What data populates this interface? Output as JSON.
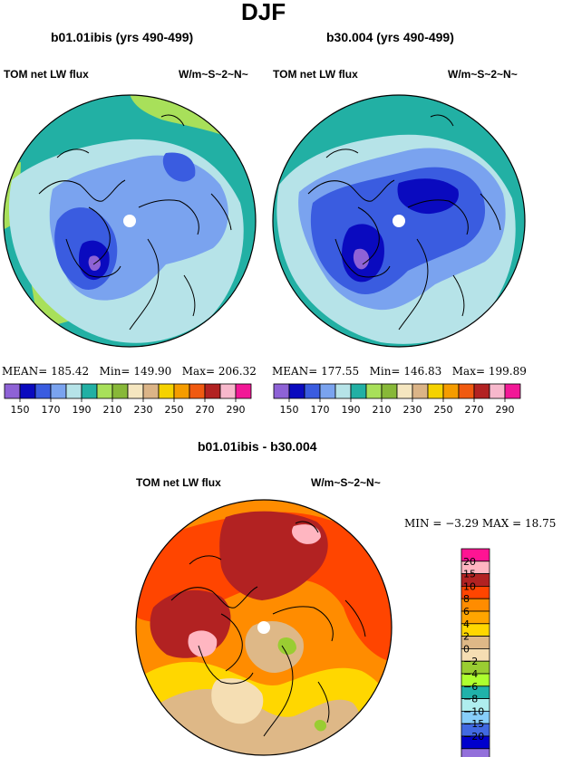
{
  "figure": {
    "title": "DJF"
  },
  "panels": [
    {
      "id": "left",
      "case_title": "b01.01ibis (yrs 490-499)",
      "variable": "TOM net LW flux",
      "units": "W/m~S~2~N~",
      "stats": {
        "mean_label": "MEAN=",
        "mean": "185.42",
        "min_label": "Min=",
        "min": "149.90",
        "max_label": "Max=",
        "max": "206.32"
      }
    },
    {
      "id": "right",
      "case_title": "b30.004 (yrs 490-499)",
      "variable": "TOM net LW flux",
      "units": "W/m~S~2~N~",
      "stats": {
        "mean_label": "MEAN=",
        "mean": "177.55",
        "min_label": "Min=",
        "min": "146.83",
        "max_label": "Max=",
        "max": "199.89"
      }
    }
  ],
  "diff_panel": {
    "title": "b01.01ibis - b30.004",
    "variable": "TOM net LW flux",
    "units": "W/m~S~2~N~",
    "stats": {
      "min_label": "MIN =",
      "min": "−3.29",
      "max_label": "MAX =",
      "max": "18.75"
    }
  },
  "colorbar_abs": {
    "colors": [
      "#8e62d6",
      "#0a0abf",
      "#3a5ce0",
      "#7aa3ef",
      "#b6e3e8",
      "#22b0a4",
      "#a8e05a",
      "#88b838",
      "#f5e6c0",
      "#dbb487",
      "#f5d200",
      "#f59c00",
      "#f05a10",
      "#b22222",
      "#f7b8cc",
      "#f21897"
    ],
    "labels": [
      "150",
      "170",
      "190",
      "210",
      "230",
      "250",
      "270",
      "290"
    ]
  },
  "colorbar_diff": {
    "colors": [
      "#ff1493",
      "#ffb6c1",
      "#b22222",
      "#ff4500",
      "#ff8c00",
      "#ffa500",
      "#ffd700",
      "#deb887",
      "#f5deb3",
      "#9acd32",
      "#adff2f",
      "#20b2aa",
      "#afeeee",
      "#87cefa",
      "#4169e1",
      "#0000cd",
      "#9370db"
    ],
    "labels": [
      "20",
      "15",
      "10",
      "8",
      "6",
      "4",
      "2",
      "0",
      "−2",
      "−4",
      "−6",
      "−8",
      "−10",
      "−15",
      "−20"
    ]
  },
  "map_colors": {
    "teal": "#22b0a4",
    "light_cyan": "#b6e3e8",
    "light_blue": "#7aa3ef",
    "mid_blue": "#3a5ce0",
    "deep_blue": "#0a0abf",
    "violet": "#8e62d6",
    "light_green": "#a8e05a",
    "diff_red": "#b22222",
    "diff_orange": "#ff8c00",
    "diff_orange_red": "#ff4500",
    "diff_yellow": "#ffd700",
    "diff_tan": "#deb887",
    "diff_wheat": "#f5deb3",
    "diff_pink": "#ffb6c1",
    "diff_green": "#9acd32"
  }
}
